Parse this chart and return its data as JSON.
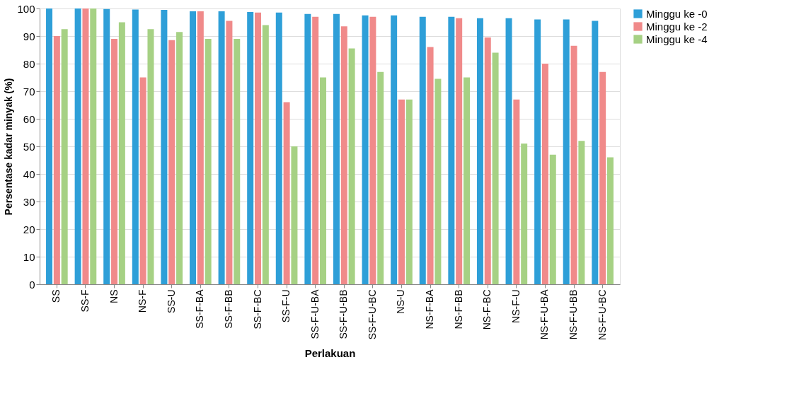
{
  "chart_data": {
    "type": "bar",
    "xlabel": "Perlakuan",
    "ylabel": "Persentase  kadar minyak (%)",
    "categories": [
      "SS",
      "SS-F",
      "NS",
      "NS-F",
      "SS-U",
      "SS-F-BA",
      "SS-F-BB",
      "SS-F-BC",
      "SS-F-U",
      "SS-F-U-BA",
      "SS-F-U-BB",
      "SS-F-U-BC",
      "NS-U",
      "NS-F-BA",
      "NS-F-BB",
      "NS-F-BC",
      "NS-F-U",
      "NS-F-U-BA",
      "NS-F-U-BB",
      "NS-F-U-BC"
    ],
    "series": [
      {
        "name": "Minggu ke -0",
        "color": "#2e9fd8",
        "values": [
          100,
          100,
          99.8,
          99.6,
          99.5,
          99,
          99,
          98.7,
          98.5,
          98,
          98,
          97.5,
          97.5,
          97,
          97,
          96.5,
          96.5,
          96,
          96,
          95.5
        ]
      },
      {
        "name": "Minggu ke -2",
        "color": "#f08a8a",
        "values": [
          90,
          100,
          89,
          75,
          88.5,
          99,
          95.5,
          98.5,
          66,
          97,
          93.5,
          97,
          67,
          86,
          96.5,
          89.5,
          67,
          80,
          86.5,
          77
        ]
      },
      {
        "name": "Minggu ke -4",
        "color": "#a6d184",
        "values": [
          92.5,
          100,
          95,
          92.5,
          91.5,
          89,
          89,
          94,
          50,
          75,
          85.5,
          77,
          67,
          74.5,
          75,
          84,
          51,
          47,
          52,
          46
        ]
      }
    ],
    "ylim": [
      0,
      100
    ],
    "yticks": [
      0,
      10,
      20,
      30,
      40,
      50,
      60,
      70,
      80,
      90,
      100
    ],
    "grid": "y",
    "legend": "right"
  }
}
